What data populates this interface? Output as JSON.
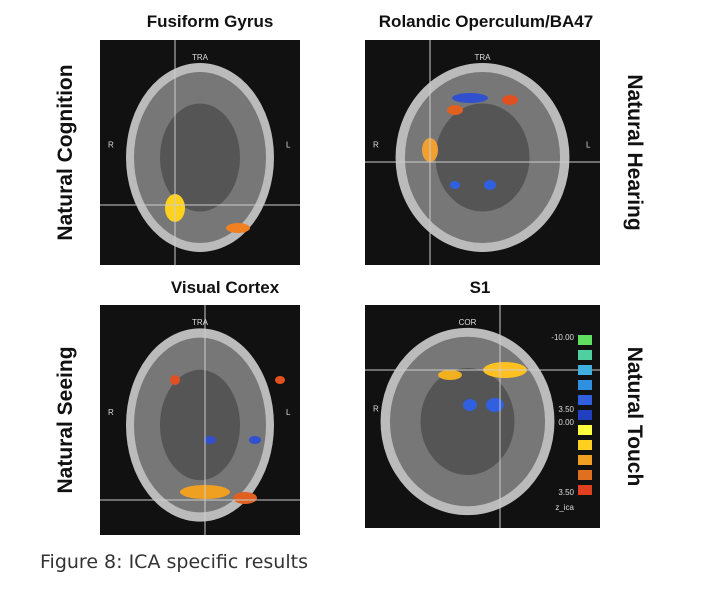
{
  "panels": [
    {
      "title": "Fusiform Gyrus",
      "side_label": "Natural Cognition",
      "view_label": "TRA",
      "left_label": "R",
      "right_label": "L"
    },
    {
      "title": "Rolandic Operculum/BA47",
      "side_label": "Natural Hearing",
      "view_label": "TRA",
      "left_label": "R",
      "right_label": "L"
    },
    {
      "title": "Visual Cortex",
      "side_label": "Natural Seeing",
      "view_label": "TRA",
      "left_label": "R",
      "right_label": "L"
    },
    {
      "title": "S1",
      "side_label": "Natural Touch",
      "view_label": "COR",
      "left_label": "R"
    }
  ],
  "colorbar": {
    "labels": [
      "-10.00",
      "3.50",
      "0.00",
      "3.50",
      "z_ica"
    ]
  },
  "caption": "Figure 8: ICA specific results"
}
